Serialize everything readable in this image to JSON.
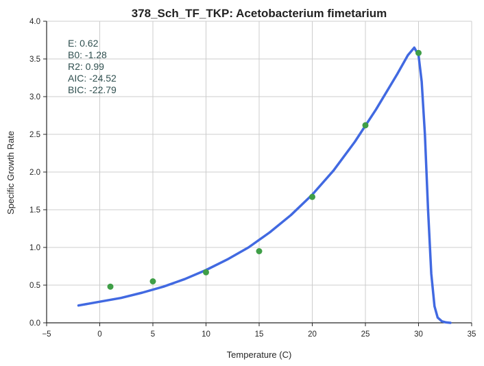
{
  "chart_data": {
    "type": "line",
    "title": "378_Sch_TF_TKP: Acetobacterium fimetarium",
    "xlabel": "Temperature (C)",
    "ylabel": "Specific Growth Rate",
    "xlim": [
      -5,
      35
    ],
    "ylim": [
      0,
      4
    ],
    "xticks": [
      "−5",
      "0",
      "5",
      "10",
      "15",
      "20",
      "25",
      "30",
      "35"
    ],
    "yticks": [
      "0.0",
      "0.5",
      "1.0",
      "1.5",
      "2.0",
      "2.5",
      "3.0",
      "3.5",
      "4.0"
    ],
    "grid": true,
    "stats": [
      "E:  0.62",
      "B0:  -1.28",
      "R2:  0.99",
      "AIC: -24.52",
      "BIC: -22.79"
    ],
    "series": [
      {
        "kind": "scatter",
        "color": "#3f9e47",
        "x": [
          1,
          5,
          10,
          15,
          20,
          25,
          30
        ],
        "y": [
          0.48,
          0.55,
          0.67,
          0.95,
          1.67,
          2.62,
          3.58
        ]
      },
      {
        "kind": "line",
        "color": "#4169e1",
        "x": [
          -2,
          0,
          2,
          4,
          6,
          8,
          10,
          12,
          14,
          16,
          18,
          20,
          22,
          24,
          26,
          28,
          29,
          29.6,
          30,
          30.3,
          30.6,
          30.9,
          31.2,
          31.5,
          31.8,
          32.2,
          32.6,
          33
        ],
        "y": [
          0.23,
          0.28,
          0.33,
          0.4,
          0.48,
          0.58,
          0.7,
          0.84,
          1.0,
          1.2,
          1.43,
          1.7,
          2.02,
          2.4,
          2.83,
          3.3,
          3.55,
          3.65,
          3.55,
          3.2,
          2.5,
          1.5,
          0.65,
          0.22,
          0.07,
          0.02,
          0.005,
          0.0
        ]
      }
    ]
  }
}
